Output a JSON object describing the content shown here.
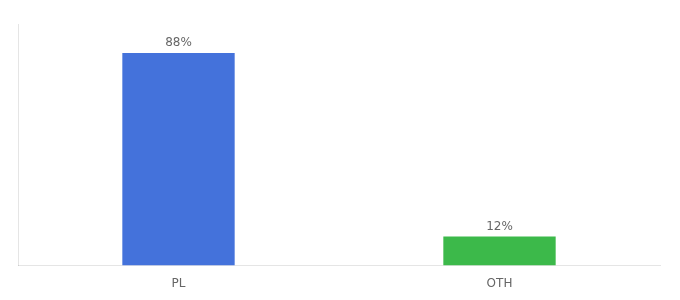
{
  "chart_data": {
    "type": "bar",
    "categories": [
      "PL",
      "OTH"
    ],
    "values": [
      88,
      12
    ],
    "value_labels": [
      "88%",
      "12%"
    ],
    "colors": [
      "#4472db",
      "#3cb94a"
    ],
    "ylim": [
      0,
      100
    ],
    "data_labels": true,
    "tick_labels": "x",
    "grid": false
  }
}
